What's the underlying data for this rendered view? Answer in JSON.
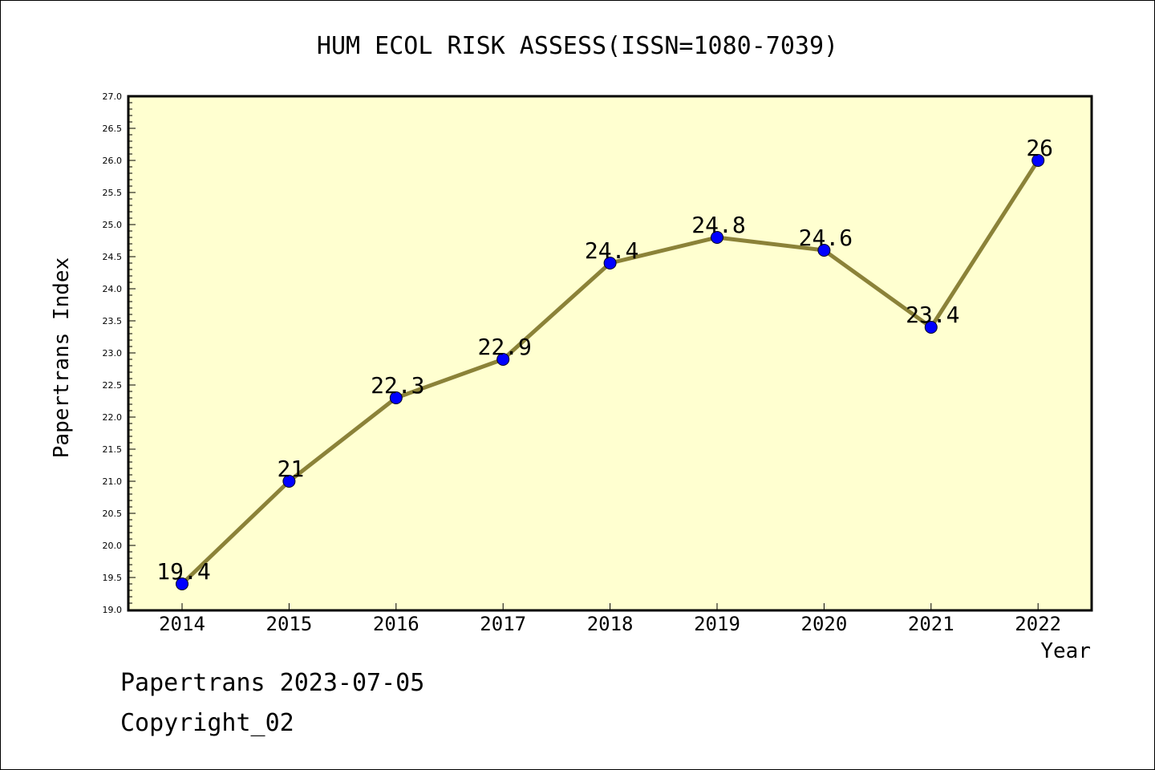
{
  "chart_data": {
    "type": "line",
    "title": "HUM ECOL RISK ASSESS(ISSN=1080-7039)",
    "xlabel": "Year",
    "ylabel": "Papertrans Index",
    "categories": [
      "2014",
      "2015",
      "2016",
      "2017",
      "2018",
      "2019",
      "2020",
      "2021",
      "2022"
    ],
    "series": [
      {
        "values": [
          19.4,
          21,
          22.3,
          22.9,
          24.4,
          24.8,
          24.6,
          23.4,
          26
        ],
        "labels": [
          "19.4",
          "21",
          "22.3",
          "22.9",
          "24.4",
          "24.8",
          "24.6",
          "23.4",
          "26"
        ]
      }
    ],
    "ylim": [
      19.0,
      27.0
    ],
    "ytick_labels": [
      "19.0",
      "19.5",
      "20.0",
      "20.5",
      "21.0",
      "21.5",
      "22.0",
      "22.5",
      "23.0",
      "23.5",
      "24.0",
      "24.5",
      "25.0",
      "25.5",
      "26.0",
      "26.5",
      "27.0"
    ],
    "grid": false,
    "colors": {
      "plot_background": "#ffffd0",
      "line": "#8b8238",
      "marker": "#0000ff",
      "axis": "#000000"
    }
  },
  "footer": {
    "line1": "Papertrans 2023-07-05",
    "line2": "Copyright_02"
  }
}
